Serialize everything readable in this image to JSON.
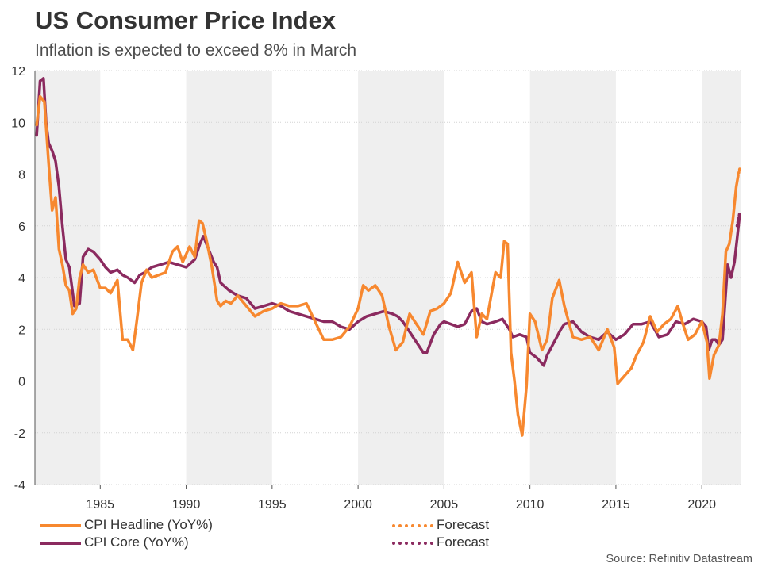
{
  "header": {
    "title": "US Consumer Price Index",
    "subtitle": "Inflation is expected to exceed 8% in March"
  },
  "legend": {
    "headline_label": "CPI Headline (YoY%)",
    "core_label": "CPI Core (YoY%)",
    "forecast_label_1": "Forecast",
    "forecast_label_2": "Forecast"
  },
  "source": "Source: Refinitiv Datastream",
  "colors": {
    "headline": "#f7882f",
    "core": "#8b2a5f",
    "band": "#efefef"
  },
  "chart_data": {
    "type": "line",
    "title": "US Consumer Price Index",
    "subtitle": "Inflation is expected to exceed 8% in March",
    "ylim": [
      -4,
      12
    ],
    "yticks": [
      -4,
      -2,
      0,
      2,
      4,
      6,
      8,
      10,
      12
    ],
    "xlim": [
      1981.2,
      2022.3
    ],
    "xticks": [
      1985,
      1990,
      1995,
      2000,
      2005,
      2010,
      2015,
      2020
    ],
    "shaded_bands": [
      [
        1981.2,
        1985
      ],
      [
        1990,
        1995
      ],
      [
        2000,
        2005
      ],
      [
        2010,
        2015
      ],
      [
        2020,
        2022.3
      ]
    ],
    "grid": true,
    "legend_position": "bottom",
    "series": [
      {
        "name": "CPI Headline (YoY%)",
        "x": [
          1981.3,
          1981.5,
          1981.75,
          1982.0,
          1982.2,
          1982.4,
          1982.6,
          1982.8,
          1983.0,
          1983.2,
          1983.4,
          1983.6,
          1983.8,
          1984.0,
          1984.3,
          1984.6,
          1985.0,
          1985.3,
          1985.6,
          1986.0,
          1986.3,
          1986.6,
          1986.9,
          1987.1,
          1987.4,
          1987.7,
          1988.0,
          1988.4,
          1988.8,
          1989.2,
          1989.5,
          1989.8,
          1990.2,
          1990.5,
          1990.75,
          1990.95,
          1991.2,
          1991.5,
          1991.8,
          1992.0,
          1992.3,
          1992.6,
          1993.0,
          1993.5,
          1994.0,
          1994.5,
          1995.0,
          1995.5,
          1996.0,
          1996.5,
          1997.0,
          1997.5,
          1998.0,
          1998.5,
          1999.0,
          1999.5,
          2000.0,
          2000.3,
          2000.6,
          2001.0,
          2001.4,
          2001.8,
          2002.2,
          2002.6,
          2003.0,
          2003.4,
          2003.8,
          2004.2,
          2004.6,
          2005.0,
          2005.4,
          2005.8,
          2006.2,
          2006.6,
          2006.9,
          2007.2,
          2007.5,
          2007.8,
          2008.0,
          2008.3,
          2008.5,
          2008.7,
          2008.9,
          2009.1,
          2009.3,
          2009.55,
          2009.8,
          2010.0,
          2010.3,
          2010.7,
          2011.0,
          2011.3,
          2011.7,
          2012.0,
          2012.5,
          2013.0,
          2013.5,
          2014.0,
          2014.5,
          2014.9,
          2015.1,
          2015.5,
          2015.9,
          2016.2,
          2016.6,
          2017.0,
          2017.4,
          2017.8,
          2018.2,
          2018.6,
          2018.9,
          2019.2,
          2019.6,
          2020.0,
          2020.3,
          2020.45,
          2020.7,
          2021.0,
          2021.2,
          2021.4,
          2021.6,
          2021.8,
          2022.0,
          2022.1
        ],
        "y": [
          9.9,
          11.0,
          10.8,
          8.4,
          6.6,
          7.1,
          5.1,
          4.5,
          3.7,
          3.5,
          2.6,
          2.8,
          4.0,
          4.5,
          4.2,
          4.3,
          3.6,
          3.6,
          3.4,
          3.9,
          1.6,
          1.6,
          1.2,
          2.2,
          3.8,
          4.3,
          4.0,
          4.1,
          4.2,
          5.0,
          5.2,
          4.6,
          5.2,
          4.8,
          6.2,
          6.1,
          5.4,
          4.4,
          3.1,
          2.9,
          3.1,
          3.0,
          3.3,
          2.9,
          2.5,
          2.7,
          2.8,
          3.0,
          2.9,
          2.9,
          3.0,
          2.3,
          1.6,
          1.6,
          1.7,
          2.1,
          2.8,
          3.7,
          3.5,
          3.7,
          3.3,
          2.1,
          1.2,
          1.5,
          2.6,
          2.2,
          1.8,
          2.7,
          2.8,
          3.0,
          3.4,
          4.6,
          3.8,
          4.2,
          1.7,
          2.6,
          2.4,
          3.5,
          4.2,
          4.0,
          5.4,
          5.3,
          1.1,
          0.0,
          -1.3,
          -2.1,
          -0.2,
          2.6,
          2.3,
          1.2,
          1.6,
          3.2,
          3.9,
          2.9,
          1.7,
          1.6,
          1.7,
          1.2,
          2.0,
          1.3,
          -0.1,
          0.2,
          0.5,
          1.0,
          1.5,
          2.5,
          1.9,
          2.2,
          2.4,
          2.9,
          2.2,
          1.6,
          1.8,
          2.3,
          1.5,
          0.1,
          1.0,
          1.4,
          2.6,
          5.0,
          5.3,
          6.2,
          7.5,
          7.9
        ]
      },
      {
        "name": "CPI Core (YoY%)",
        "x": [
          1981.3,
          1981.5,
          1981.7,
          1981.85,
          1982.0,
          1982.2,
          1982.4,
          1982.6,
          1982.8,
          1983.0,
          1983.2,
          1983.5,
          1983.8,
          1984.0,
          1984.3,
          1984.6,
          1985.0,
          1985.3,
          1985.6,
          1986.0,
          1986.3,
          1986.6,
          1987.0,
          1987.3,
          1987.6,
          1988.0,
          1988.5,
          1989.0,
          1989.5,
          1990.0,
          1990.5,
          1990.8,
          1991.0,
          1991.3,
          1991.6,
          1991.8,
          1992.0,
          1992.5,
          1993.0,
          1993.5,
          1994.0,
          1994.5,
          1995.0,
          1995.5,
          1996.0,
          1996.5,
          1997.0,
          1997.5,
          1998.0,
          1998.5,
          1999.0,
          1999.5,
          2000.0,
          2000.5,
          2001.0,
          2001.5,
          2002.0,
          2002.3,
          2002.6,
          2003.0,
          2003.4,
          2003.8,
          2004.0,
          2004.4,
          2004.8,
          2005.0,
          2005.4,
          2005.8,
          2006.2,
          2006.6,
          2006.9,
          2007.2,
          2007.5,
          2008.0,
          2008.4,
          2008.8,
          2009.0,
          2009.4,
          2009.8,
          2010.0,
          2010.4,
          2010.8,
          2011.0,
          2011.4,
          2011.8,
          2012.0,
          2012.5,
          2013.0,
          2013.5,
          2014.0,
          2014.5,
          2015.0,
          2015.5,
          2016.0,
          2016.5,
          2017.0,
          2017.5,
          2018.0,
          2018.5,
          2019.0,
          2019.5,
          2020.0,
          2020.25,
          2020.4,
          2020.6,
          2020.8,
          2021.0,
          2021.2,
          2021.35,
          2021.5,
          2021.7,
          2021.9,
          2022.05,
          2022.2
        ],
        "y": [
          9.5,
          11.6,
          11.7,
          10.0,
          9.2,
          8.9,
          8.5,
          7.5,
          6.0,
          4.7,
          4.4,
          2.9,
          3.0,
          4.8,
          5.1,
          5.0,
          4.7,
          4.4,
          4.2,
          4.3,
          4.1,
          4.0,
          3.8,
          4.1,
          4.2,
          4.4,
          4.5,
          4.6,
          4.5,
          4.4,
          4.7,
          5.3,
          5.6,
          5.1,
          4.6,
          4.4,
          3.8,
          3.5,
          3.3,
          3.2,
          2.8,
          2.9,
          3.0,
          2.9,
          2.7,
          2.6,
          2.5,
          2.4,
          2.3,
          2.3,
          2.1,
          2.0,
          2.3,
          2.5,
          2.6,
          2.7,
          2.6,
          2.5,
          2.3,
          1.9,
          1.5,
          1.1,
          1.1,
          1.8,
          2.2,
          2.3,
          2.2,
          2.1,
          2.2,
          2.7,
          2.8,
          2.3,
          2.2,
          2.3,
          2.4,
          2.0,
          1.7,
          1.8,
          1.7,
          1.1,
          0.9,
          0.6,
          1.0,
          1.5,
          2.0,
          2.2,
          2.3,
          1.9,
          1.7,
          1.6,
          1.9,
          1.6,
          1.8,
          2.2,
          2.2,
          2.3,
          1.7,
          1.8,
          2.3,
          2.2,
          2.4,
          2.3,
          2.1,
          1.2,
          1.6,
          1.6,
          1.4,
          1.6,
          3.0,
          4.5,
          4.0,
          4.6,
          5.5,
          6.4
        ]
      },
      {
        "name": "Forecast",
        "x": [
          2022.1,
          2022.2
        ],
        "y": [
          7.9,
          8.2
        ]
      },
      {
        "name": "Forecast",
        "x": [
          2022.05,
          2022.2
        ],
        "y": [
          6.0,
          6.5
        ]
      }
    ]
  }
}
